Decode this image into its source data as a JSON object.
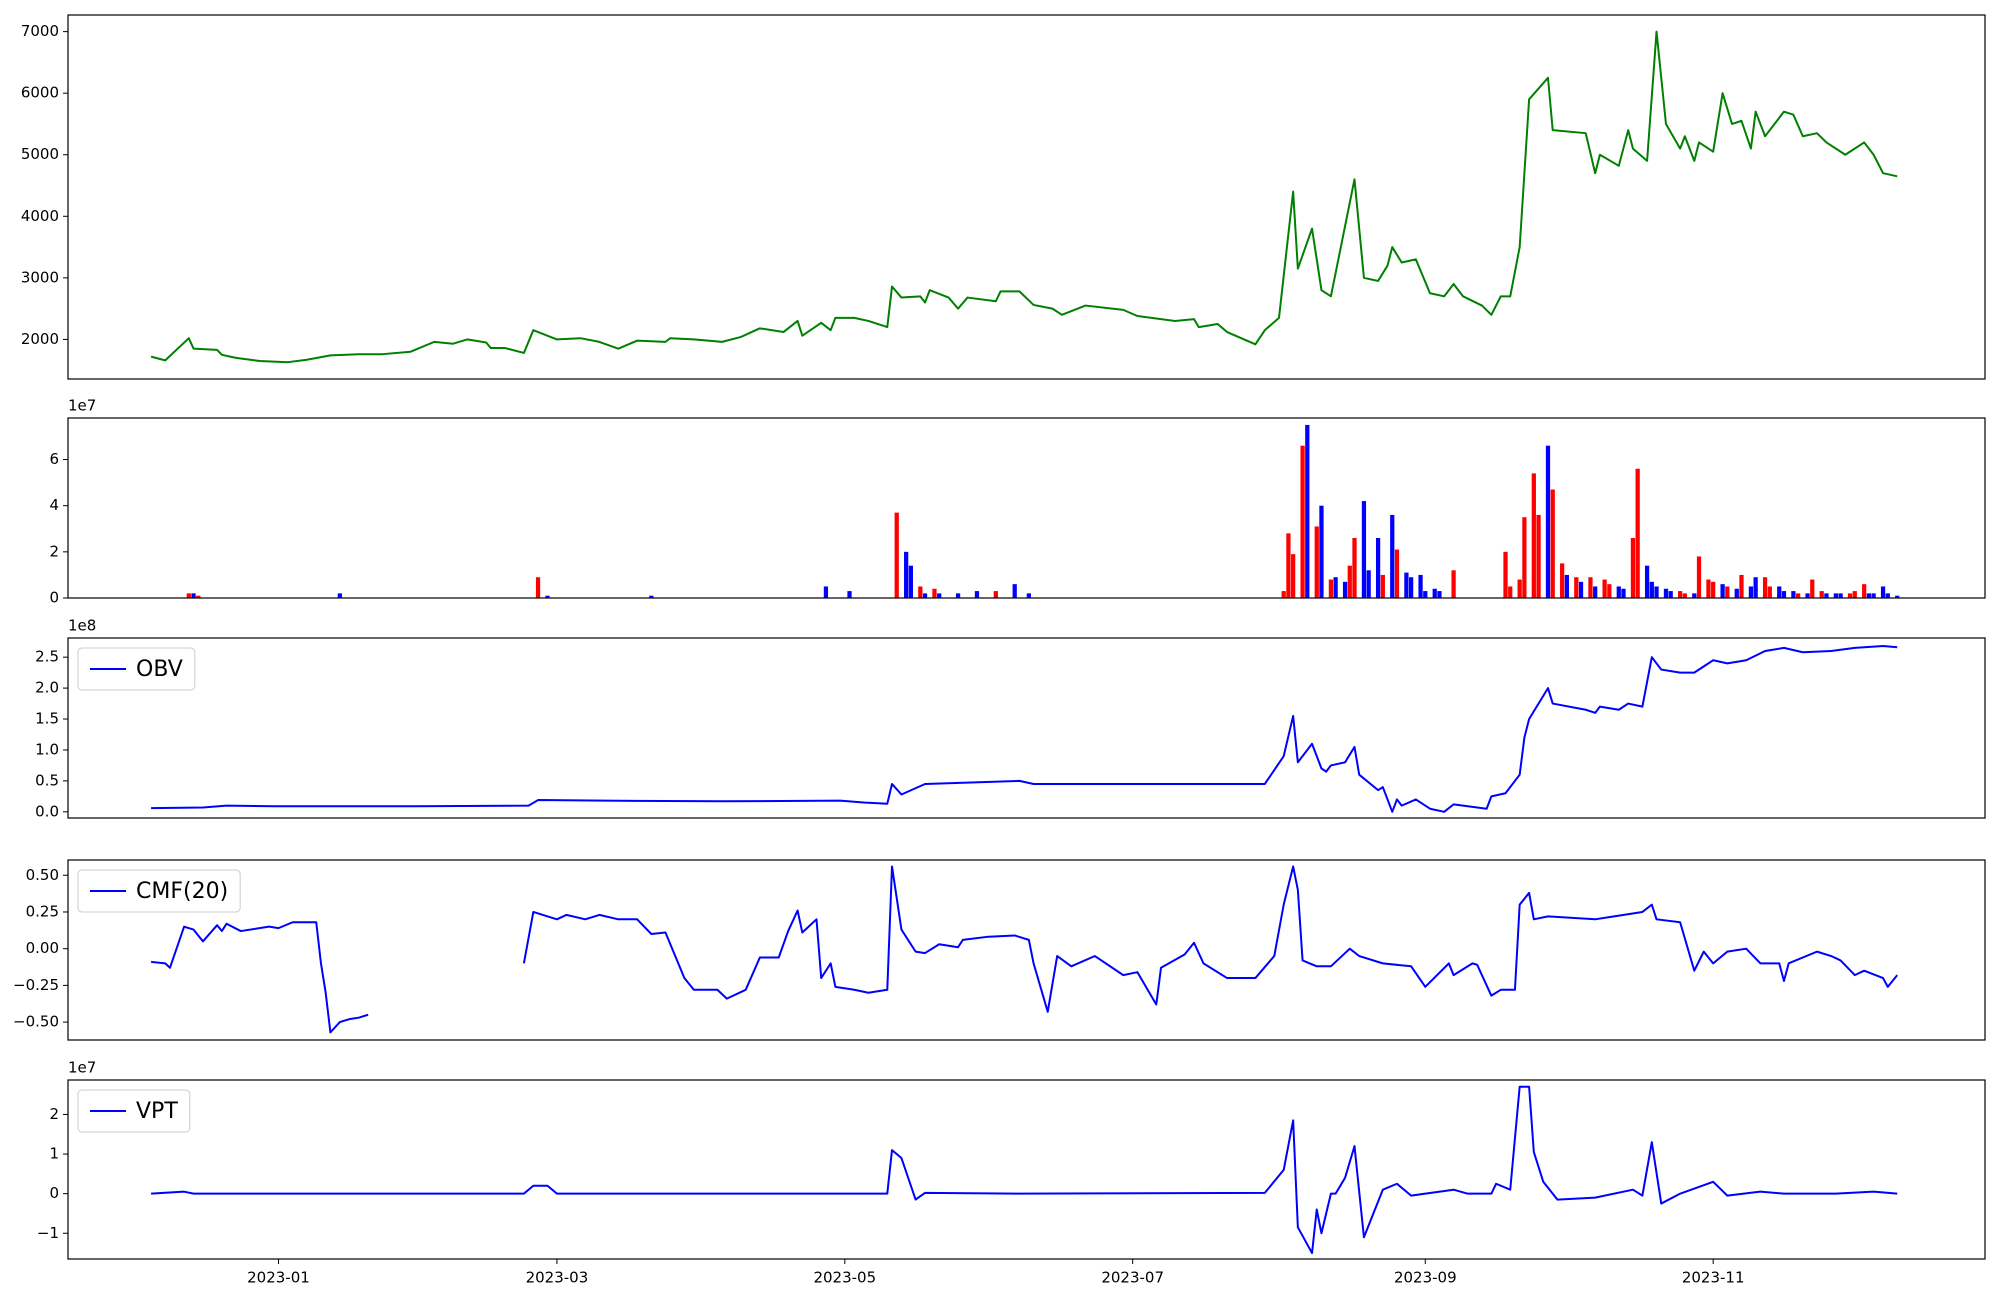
{
  "chart_data": [
    {
      "type": "line",
      "xlim": [
        -13.6,
        392.6
      ],
      "ylim": [
        1357,
        7270
      ],
      "yticks": [
        2000,
        3000,
        4000,
        5000,
        6000,
        7000
      ],
      "x": [
        4,
        7,
        12,
        13,
        18,
        19,
        22,
        27,
        33,
        37,
        42,
        48,
        53,
        59,
        64,
        68,
        71,
        75,
        76,
        79,
        83,
        85,
        90,
        95,
        99,
        103,
        107,
        113,
        114,
        119,
        125,
        129,
        133,
        138,
        141,
        142,
        146,
        148,
        149,
        153,
        156,
        160,
        161,
        163,
        167,
        168,
        169,
        173,
        175,
        177,
        183,
        184,
        188,
        191,
        195,
        197,
        202,
        210,
        213,
        221,
        225,
        226,
        230,
        232,
        238,
        240,
        243,
        246,
        247,
        250,
        252,
        254,
        259,
        261,
        264,
        266,
        267,
        269,
        272,
        275,
        278,
        280,
        282,
        286,
        288,
        290,
        292,
        294,
        296,
        300,
        301,
        308,
        310,
        311,
        315,
        317,
        318,
        321,
        323,
        325,
        328,
        329,
        331,
        332,
        335,
        337,
        339,
        341,
        343,
        344,
        346,
        350,
        352,
        354,
        357,
        359,
        363,
        367,
        369,
        371,
        374
      ],
      "series": [
        {
          "color": "#008000",
          "values": [
            1720,
            1660,
            2020,
            1850,
            1830,
            1750,
            1700,
            1650,
            1630,
            1670,
            1740,
            1760,
            1760,
            1800,
            1960,
            1930,
            2000,
            1950,
            1860,
            1860,
            1780,
            2150,
            2000,
            2020,
            1960,
            1850,
            1980,
            1960,
            2020,
            2000,
            1960,
            2040,
            2180,
            2120,
            2300,
            2060,
            2270,
            2150,
            2350,
            2350,
            2300,
            2200,
            2860,
            2680,
            2700,
            2600,
            2800,
            2680,
            2500,
            2680,
            2620,
            2780,
            2780,
            2560,
            2500,
            2400,
            2550,
            2480,
            2380,
            2300,
            2330,
            2200,
            2250,
            2120,
            1920,
            2150,
            2350,
            4400,
            3150,
            3800,
            2800,
            2700,
            4600,
            3000,
            2950,
            3200,
            3500,
            3250,
            3300,
            2750,
            2700,
            2900,
            2700,
            2550,
            2400,
            2700,
            2700,
            3500,
            5900,
            6250,
            5400,
            5350,
            4700,
            5000,
            4820,
            5400,
            5100,
            4900,
            7000,
            5500,
            5100,
            5300,
            4900,
            5200,
            5050,
            6000,
            5500,
            5550,
            5100,
            5700,
            5300,
            5700,
            5650,
            5300,
            5350,
            5200,
            5000,
            5200,
            5000,
            4700,
            4650
          ]
        }
      ]
    },
    {
      "type": "bar",
      "xlim": [
        -13.6,
        392.6
      ],
      "ylim": [
        0,
        7.8
      ],
      "yticks": [
        0,
        2,
        4,
        6
      ],
      "offset_label": "1e7",
      "x": [
        12,
        13,
        14,
        44,
        86,
        88,
        110,
        147,
        152,
        162,
        164,
        165,
        167,
        168,
        170,
        171,
        175,
        179,
        183,
        187,
        190,
        244,
        245,
        246,
        248,
        249,
        251,
        252,
        254,
        255,
        257,
        258,
        259,
        261,
        262,
        264,
        265,
        267,
        268,
        270,
        271,
        273,
        274,
        276,
        277,
        280,
        291,
        292,
        294,
        295,
        297,
        298,
        300,
        301,
        303,
        304,
        306,
        307,
        309,
        310,
        312,
        313,
        315,
        316,
        318,
        319,
        321,
        322,
        323,
        325,
        326,
        328,
        329,
        331,
        332,
        334,
        335,
        337,
        338,
        340,
        341,
        343,
        344,
        346,
        347,
        349,
        350,
        352,
        353,
        355,
        356,
        358,
        359,
        361,
        362,
        364,
        365,
        367,
        368,
        369,
        371,
        372,
        374
      ],
      "values": [
        0.2,
        0.2,
        0.1,
        0.2,
        0.9,
        0.1,
        0.1,
        0.5,
        0.3,
        3.7,
        2.0,
        1.4,
        0.5,
        0.2,
        0.4,
        0.2,
        0.2,
        0.3,
        0.3,
        0.6,
        0.2,
        0.3,
        2.8,
        1.9,
        6.6,
        7.5,
        3.1,
        4.0,
        0.8,
        0.9,
        0.7,
        1.4,
        2.6,
        4.2,
        1.2,
        2.6,
        1.0,
        3.6,
        2.1,
        1.1,
        0.9,
        1.0,
        0.3,
        0.4,
        0.3,
        1.2,
        2.0,
        0.5,
        0.8,
        3.5,
        5.4,
        3.6,
        6.6,
        4.7,
        1.5,
        1.0,
        0.9,
        0.7,
        0.9,
        0.5,
        0.8,
        0.6,
        0.5,
        0.4,
        2.6,
        5.6,
        1.4,
        0.7,
        0.5,
        0.4,
        0.3,
        0.3,
        0.2,
        0.2,
        1.8,
        0.8,
        0.7,
        0.6,
        0.5,
        0.4,
        1.0,
        0.5,
        0.9,
        0.9,
        0.5,
        0.5,
        0.3,
        0.3,
        0.2,
        0.2,
        0.8,
        0.3,
        0.2,
        0.2,
        0.2,
        0.2,
        0.3,
        0.6,
        0.2,
        0.2,
        0.5,
        0.2,
        0.1
      ],
      "colors": [
        "red",
        "blue",
        "red",
        "blue",
        "red",
        "blue",
        "blue",
        "blue",
        "blue",
        "red",
        "blue",
        "blue",
        "red",
        "blue",
        "red",
        "blue",
        "blue",
        "blue",
        "red",
        "blue",
        "blue",
        "red",
        "red",
        "red",
        "red",
        "blue",
        "red",
        "blue",
        "red",
        "blue",
        "blue",
        "red",
        "red",
        "blue",
        "blue",
        "blue",
        "red",
        "blue",
        "red",
        "blue",
        "blue",
        "blue",
        "blue",
        "blue",
        "blue",
        "red",
        "red",
        "red",
        "red",
        "red",
        "red",
        "red",
        "blue",
        "red",
        "red",
        "blue",
        "red",
        "blue",
        "red",
        "blue",
        "red",
        "red",
        "blue",
        "blue",
        "red",
        "red",
        "blue",
        "blue",
        "blue",
        "blue",
        "blue",
        "red",
        "red",
        "blue",
        "red",
        "red",
        "red",
        "blue",
        "red",
        "blue",
        "red",
        "blue",
        "blue",
        "red",
        "red",
        "blue",
        "blue",
        "blue",
        "red",
        "blue",
        "red",
        "red",
        "blue",
        "blue",
        "blue",
        "red",
        "red",
        "red",
        "blue",
        "blue",
        "blue",
        "blue",
        "blue"
      ]
    },
    {
      "type": "line",
      "xlim": [
        -13.6,
        392.6
      ],
      "ylim": [
        -0.1,
        2.81
      ],
      "offset_label": "1e8",
      "yticks": [
        {
          "value": 0,
          "label": "0.0"
        },
        0.5,
        {
          "value": 1,
          "label": "1.0"
        },
        1.5,
        {
          "value": 2,
          "label": "2.0"
        },
        2.5
      ],
      "x": [
        4,
        15,
        20,
        30,
        60,
        84,
        86,
        100,
        125,
        150,
        155,
        160,
        161,
        163,
        168,
        188,
        191,
        240,
        244,
        246,
        247,
        250,
        252,
        253,
        254,
        257,
        259,
        260,
        264,
        265,
        267,
        268,
        269,
        272,
        275,
        278,
        280,
        287,
        288,
        291,
        294,
        295,
        296,
        300,
        301,
        308,
        310,
        311,
        315,
        317,
        320,
        322,
        324,
        328,
        331,
        335,
        338,
        342,
        346,
        350,
        354,
        360,
        365,
        371,
        374
      ],
      "series": [
        {
          "name": "OBV",
          "color": "#0000ff",
          "values": [
            0.06,
            0.07,
            0.1,
            0.09,
            0.09,
            0.1,
            0.19,
            0.18,
            0.17,
            0.18,
            0.15,
            0.13,
            0.45,
            0.28,
            0.45,
            0.5,
            0.45,
            0.45,
            0.9,
            1.55,
            0.8,
            1.1,
            0.7,
            0.65,
            0.75,
            0.8,
            1.05,
            0.6,
            0.35,
            0.4,
            0.0,
            0.2,
            0.1,
            0.2,
            0.05,
            0.0,
            0.12,
            0.05,
            0.25,
            0.3,
            0.6,
            1.2,
            1.5,
            2.0,
            1.75,
            1.65,
            1.6,
            1.7,
            1.65,
            1.75,
            1.7,
            2.5,
            2.3,
            2.25,
            2.25,
            2.45,
            2.4,
            2.45,
            2.6,
            2.65,
            2.58,
            2.6,
            2.65,
            2.68,
            2.66
          ]
        }
      ]
    },
    {
      "type": "line",
      "xlim": [
        -13.6,
        392.6
      ],
      "ylim": [
        -0.622,
        0.604
      ],
      "yticks": [
        {
          "value": -0.5,
          "label": "−0.50"
        },
        {
          "value": -0.25,
          "label": "−0.25"
        },
        {
          "value": 0,
          "label": "0.00"
        },
        0.25,
        {
          "value": 0.5,
          "label": "0.50"
        }
      ],
      "x": [
        4,
        7,
        8,
        11,
        13,
        15,
        18,
        19,
        20,
        23,
        29,
        31,
        34,
        39,
        40,
        41,
        42,
        44,
        46,
        48,
        50,
        60,
        83,
        85,
        90,
        92,
        96,
        99,
        103,
        107,
        110,
        113,
        117,
        119,
        124,
        126,
        130,
        133,
        137,
        139,
        141,
        142,
        145,
        146,
        148,
        149,
        153,
        156,
        160,
        161,
        163,
        166,
        168,
        171,
        175,
        176,
        181,
        187,
        190,
        191,
        194,
        196,
        199,
        204,
        210,
        213,
        215,
        217,
        218,
        223,
        225,
        227,
        232,
        238,
        242,
        244,
        246,
        247,
        248,
        251,
        254,
        258,
        260,
        265,
        271,
        274,
        279,
        280,
        284,
        285,
        288,
        290,
        293,
        294,
        296,
        297,
        300,
        310,
        314,
        320,
        322,
        323,
        328,
        331,
        333,
        335,
        338,
        342,
        345,
        349,
        350,
        351,
        357,
        360,
        362,
        365,
        367,
        371,
        372,
        374
      ],
      "series": [
        {
          "name": "CMF(20)",
          "color": "#0000ff",
          "values": [
            -0.09,
            -0.1,
            -0.13,
            0.15,
            0.13,
            0.05,
            0.16,
            0.12,
            0.17,
            0.12,
            0.15,
            0.14,
            0.18,
            0.18,
            -0.1,
            -0.3,
            -0.57,
            -0.5,
            -0.48,
            -0.47,
            -0.45,
            null,
            -0.1,
            0.25,
            0.2,
            0.23,
            0.2,
            0.23,
            0.2,
            0.2,
            0.1,
            0.11,
            -0.2,
            -0.28,
            -0.28,
            -0.34,
            -0.28,
            -0.06,
            -0.06,
            0.12,
            0.26,
            0.11,
            0.2,
            -0.2,
            -0.1,
            -0.26,
            -0.28,
            -0.3,
            -0.28,
            0.56,
            0.13,
            -0.02,
            -0.03,
            0.03,
            0.01,
            0.06,
            0.08,
            0.09,
            0.06,
            -0.1,
            -0.43,
            -0.05,
            -0.12,
            -0.05,
            -0.18,
            -0.16,
            -0.27,
            -0.38,
            -0.13,
            -0.04,
            0.04,
            -0.1,
            -0.2,
            -0.2,
            -0.05,
            0.3,
            0.56,
            0.4,
            -0.08,
            -0.12,
            -0.12,
            0.0,
            -0.05,
            -0.1,
            -0.12,
            -0.26,
            -0.1,
            -0.18,
            -0.1,
            -0.11,
            -0.32,
            -0.28,
            -0.28,
            0.3,
            0.38,
            0.2,
            0.22,
            0.2,
            0.22,
            0.25,
            0.3,
            0.2,
            0.18,
            -0.15,
            -0.02,
            -0.1,
            -0.02,
            0.0,
            -0.1,
            -0.1,
            -0.22,
            -0.1,
            -0.02,
            -0.05,
            -0.08,
            -0.18,
            -0.15,
            -0.2,
            -0.26,
            -0.18
          ]
        }
      ]
    },
    {
      "type": "line",
      "xlim": [
        -13.6,
        392.6
      ],
      "ylim": [
        -1.65,
        2.87
      ],
      "offset_label": "1e7",
      "yticks": [
        {
          "value": -1,
          "label": "−1"
        },
        0,
        1,
        2
      ],
      "xticks": [
        {
          "value": 31,
          "label": "2023-01"
        },
        {
          "value": 90,
          "label": "2023-03"
        },
        {
          "value": 151,
          "label": "2023-05"
        },
        {
          "value": 212,
          "label": "2023-07"
        },
        {
          "value": 274,
          "label": "2023-09"
        },
        {
          "value": 335,
          "label": "2023-11"
        }
      ],
      "x": [
        4,
        11,
        13,
        83,
        85,
        88,
        90,
        160,
        161,
        163,
        166,
        168,
        188,
        240,
        244,
        246,
        247,
        250,
        251,
        252,
        254,
        255,
        257,
        259,
        261,
        265,
        268,
        271,
        274,
        280,
        283,
        288,
        289,
        292,
        294,
        296,
        297,
        299,
        302,
        310,
        318,
        320,
        322,
        324,
        328,
        335,
        338,
        345,
        350,
        361,
        369,
        374
      ],
      "series": [
        {
          "name": "VPT",
          "color": "#0000ff",
          "values": [
            0,
            0.05,
            0,
            0,
            0.2,
            0.2,
            0,
            0,
            1.1,
            0.9,
            -0.15,
            0.02,
            0,
            0.02,
            0.6,
            1.85,
            -0.85,
            -1.5,
            -0.4,
            -1.0,
            0,
            0,
            0.4,
            1.2,
            -1.1,
            0.1,
            0.25,
            -0.05,
            0,
            0.1,
            0,
            0,
            0.25,
            0.1,
            2.7,
            2.7,
            1.05,
            0.3,
            -0.15,
            -0.1,
            0.1,
            -0.05,
            1.3,
            -0.25,
            0,
            0.3,
            -0.05,
            0.05,
            0,
            0,
            0.05,
            0
          ]
        }
      ]
    }
  ]
}
